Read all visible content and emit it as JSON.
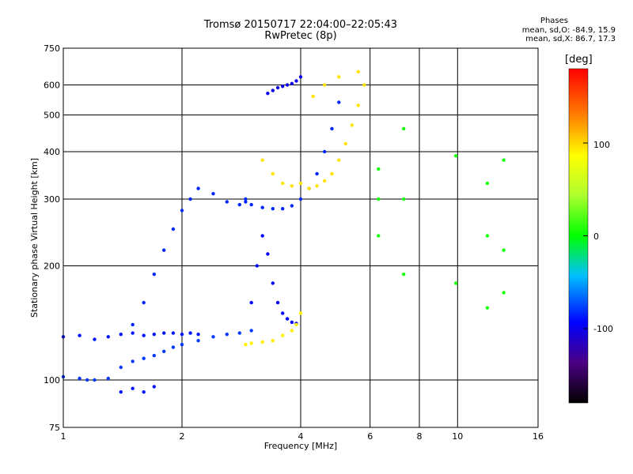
{
  "title_line1": "Tromsø 20150717 22:04:00–22:05:43",
  "title_line2": "RwPretec (8p)",
  "phases": {
    "heading": "Phases",
    "line1": "mean, sd,O: -84.9, 15.9",
    "line2": "mean, sd,X:  86.7, 17.3"
  },
  "colorbar": {
    "unit": "[deg]",
    "tick_labels": [
      "100",
      "0",
      "-100"
    ],
    "tick_values": [
      100,
      0,
      -100
    ],
    "range": [
      -180,
      180
    ],
    "colormap": "rainbow"
  },
  "chart_data": {
    "type": "scatter",
    "xlabel": "Frequency [MHz]",
    "ylabel": "Stationary phase Virtual Height [km]",
    "xscale": "log",
    "yscale": "log",
    "xlim": [
      1,
      16
    ],
    "ylim": [
      75,
      750
    ],
    "x_ticks": [
      1,
      2,
      4,
      6,
      8,
      10,
      16
    ],
    "y_ticks": [
      75,
      100,
      200,
      300,
      400,
      500,
      600,
      750
    ],
    "grid": true,
    "color_by": "phase (deg)",
    "traces": [
      {
        "phase": -90,
        "points": [
          [
            1.0,
            130
          ],
          [
            1.1,
            131
          ],
          [
            1.2,
            128
          ],
          [
            1.3,
            130
          ],
          [
            1.4,
            132
          ],
          [
            1.5,
            133
          ],
          [
            1.6,
            131
          ],
          [
            1.7,
            132
          ],
          [
            1.8,
            133
          ],
          [
            1.9,
            133
          ],
          [
            2.0,
            132
          ],
          [
            2.1,
            133
          ],
          [
            2.2,
            132
          ]
        ]
      },
      {
        "phase": -80,
        "points": [
          [
            1.0,
            102
          ],
          [
            1.1,
            101
          ],
          [
            1.15,
            100
          ],
          [
            1.2,
            100
          ],
          [
            1.3,
            101
          ],
          [
            1.4,
            108
          ],
          [
            1.5,
            112
          ],
          [
            1.6,
            114
          ],
          [
            1.7,
            116
          ],
          [
            1.8,
            119
          ],
          [
            1.9,
            122
          ],
          [
            2.0,
            124
          ],
          [
            2.2,
            127
          ],
          [
            2.4,
            130
          ],
          [
            2.6,
            132
          ],
          [
            2.8,
            133
          ],
          [
            3.0,
            135
          ]
        ]
      },
      {
        "phase": -90,
        "points": [
          [
            1.4,
            93
          ],
          [
            1.5,
            95
          ],
          [
            1.6,
            93
          ],
          [
            1.7,
            96
          ]
        ]
      },
      {
        "phase": -85,
        "points": [
          [
            1.5,
            140
          ],
          [
            1.6,
            160
          ],
          [
            1.7,
            190
          ],
          [
            1.8,
            220
          ],
          [
            1.9,
            250
          ],
          [
            2.0,
            280
          ],
          [
            2.1,
            300
          ],
          [
            2.2,
            320
          ],
          [
            2.4,
            310
          ],
          [
            2.6,
            295
          ],
          [
            2.8,
            290
          ],
          [
            2.9,
            295
          ]
        ]
      },
      {
        "phase": -85,
        "points": [
          [
            2.9,
            300
          ],
          [
            3.0,
            290
          ],
          [
            3.2,
            285
          ],
          [
            3.4,
            283
          ],
          [
            3.6,
            283
          ],
          [
            3.8,
            288
          ],
          [
            4.0,
            300
          ],
          [
            4.2,
            320
          ],
          [
            4.4,
            350
          ],
          [
            4.6,
            400
          ],
          [
            4.8,
            460
          ],
          [
            5.0,
            540
          ]
        ]
      },
      {
        "phase": -95,
        "points": [
          [
            3.0,
            160
          ],
          [
            3.1,
            200
          ],
          [
            3.2,
            240
          ],
          [
            3.3,
            215
          ],
          [
            3.4,
            180
          ],
          [
            3.5,
            160
          ],
          [
            3.6,
            150
          ],
          [
            3.7,
            145
          ],
          [
            3.8,
            142
          ],
          [
            3.9,
            141
          ]
        ]
      },
      {
        "phase": -100,
        "points": [
          [
            3.3,
            570
          ],
          [
            3.4,
            580
          ],
          [
            3.5,
            590
          ],
          [
            3.6,
            595
          ],
          [
            3.7,
            600
          ],
          [
            3.8,
            605
          ],
          [
            3.9,
            615
          ],
          [
            4.0,
            630
          ]
        ]
      },
      {
        "phase": 95,
        "points": [
          [
            2.9,
            124
          ],
          [
            3.0,
            125
          ],
          [
            3.2,
            126
          ],
          [
            3.4,
            127
          ],
          [
            3.6,
            131
          ],
          [
            3.8,
            135
          ],
          [
            3.9,
            140
          ],
          [
            4.0,
            150
          ]
        ]
      },
      {
        "phase": 100,
        "points": [
          [
            3.2,
            380
          ],
          [
            3.4,
            350
          ],
          [
            3.6,
            330
          ],
          [
            3.8,
            325
          ],
          [
            4.0,
            330
          ],
          [
            4.2,
            320
          ],
          [
            4.4,
            325
          ],
          [
            4.6,
            335
          ],
          [
            4.8,
            350
          ],
          [
            5.0,
            380
          ],
          [
            5.2,
            420
          ],
          [
            5.4,
            470
          ],
          [
            5.6,
            530
          ],
          [
            5.8,
            600
          ]
        ]
      },
      {
        "phase": 100,
        "points": [
          [
            4.3,
            560
          ],
          [
            4.6,
            600
          ],
          [
            5.0,
            630
          ],
          [
            5.6,
            650
          ]
        ]
      },
      {
        "phase": 5,
        "points": [
          [
            6.3,
            240
          ],
          [
            6.3,
            300
          ],
          [
            6.3,
            360
          ],
          [
            7.3,
            190
          ],
          [
            7.3,
            300
          ],
          [
            7.3,
            460
          ],
          [
            9.9,
            390
          ],
          [
            9.9,
            180
          ],
          [
            11.9,
            330
          ],
          [
            11.9,
            240
          ],
          [
            11.9,
            155
          ],
          [
            13.1,
            220
          ],
          [
            13.1,
            170
          ],
          [
            13.1,
            380
          ]
        ]
      }
    ]
  }
}
